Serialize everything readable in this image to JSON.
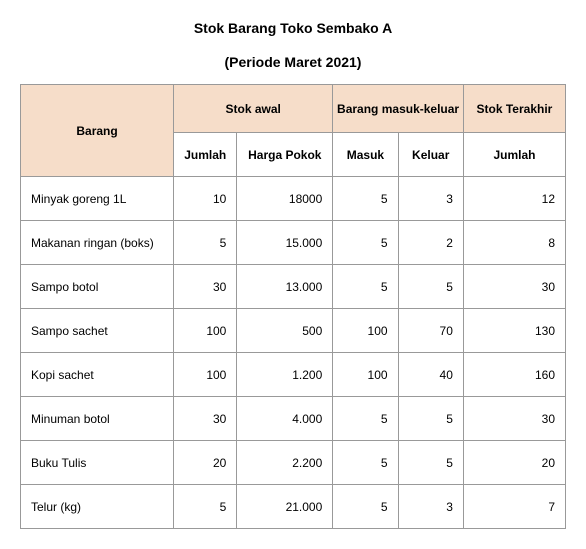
{
  "title": "Stok Barang Toko Sembako A",
  "subtitle": "(Periode Maret 2021)",
  "colors": {
    "header_bg": "#f6ddc9",
    "border": "#999999",
    "background": "#ffffff",
    "text": "#000000"
  },
  "typography": {
    "font_family": "Arial",
    "title_size_pt": 14,
    "body_size_pt": 12
  },
  "table": {
    "type": "table",
    "headers": {
      "barang": "Barang",
      "stok_awal": "Stok awal",
      "barang_mk": "Barang masuk-keluar",
      "stok_terakhir": "Stok Terakhir"
    },
    "subheaders": {
      "jumlah": "Jumlah",
      "harga_pokok": "Harga Pokok",
      "masuk": "Masuk",
      "keluar": "Keluar",
      "jumlah_terakhir": "Jumlah"
    },
    "columns": [
      "Barang",
      "Jumlah",
      "Harga Pokok",
      "Masuk",
      "Keluar",
      "Jumlah"
    ],
    "col_align": [
      "left",
      "right",
      "right",
      "right",
      "right",
      "right"
    ],
    "rows": [
      {
        "barang": "Minyak goreng 1L",
        "jumlah": "10",
        "harga": "18000",
        "masuk": "5",
        "keluar": "3",
        "terakhir": "12"
      },
      {
        "barang": "Makanan ringan (boks)",
        "jumlah": "5",
        "harga": "15.000",
        "masuk": "5",
        "keluar": "2",
        "terakhir": "8"
      },
      {
        "barang": "Sampo botol",
        "jumlah": "30",
        "harga": "13.000",
        "masuk": "5",
        "keluar": "5",
        "terakhir": "30"
      },
      {
        "barang": "Sampo sachet",
        "jumlah": "100",
        "harga": "500",
        "masuk": "100",
        "keluar": "70",
        "terakhir": "130"
      },
      {
        "barang": "Kopi sachet",
        "jumlah": "100",
        "harga": "1.200",
        "masuk": "100",
        "keluar": "40",
        "terakhir": "160"
      },
      {
        "barang": "Minuman botol",
        "jumlah": "30",
        "harga": "4.000",
        "masuk": "5",
        "keluar": "5",
        "terakhir": "30"
      },
      {
        "barang": "Buku Tulis",
        "jumlah": "20",
        "harga": "2.200",
        "masuk": "5",
        "keluar": "5",
        "terakhir": "20"
      },
      {
        "barang": "Telur (kg)",
        "jumlah": "5",
        "harga": "21.000",
        "masuk": "5",
        "keluar": "3",
        "terakhir": "7"
      }
    ]
  }
}
